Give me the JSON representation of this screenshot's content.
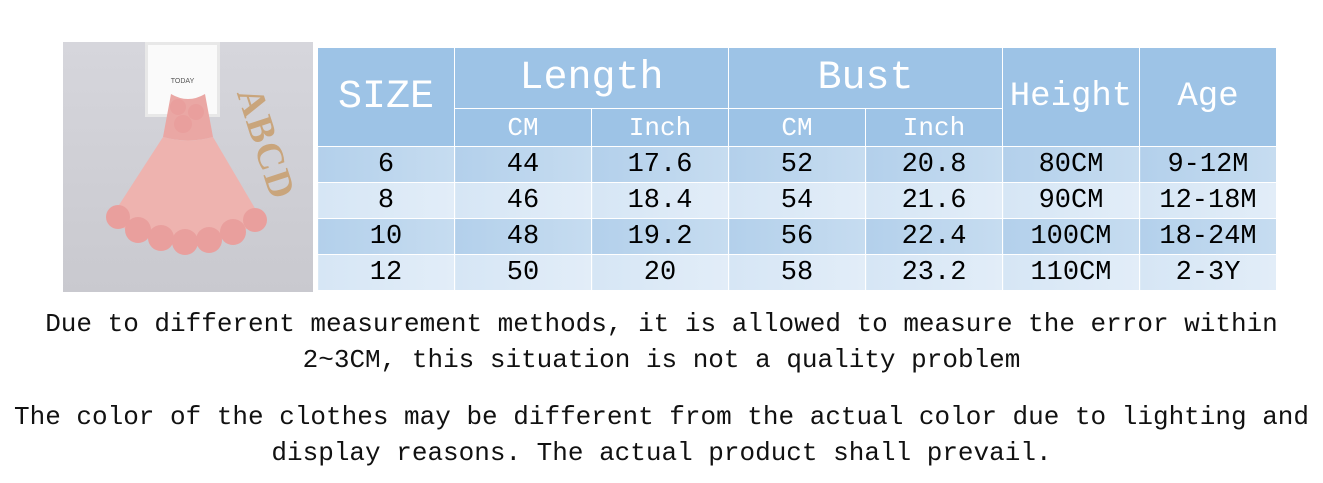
{
  "image": {
    "frame_text": "TODAY",
    "letters": "ABCD"
  },
  "table": {
    "headers": {
      "size": "SIZE",
      "length": "Length",
      "bust": "Bust",
      "height": "Height",
      "age": "Age",
      "cm": "CM",
      "inch": "Inch"
    },
    "rows": [
      {
        "size": "6",
        "length_cm": "44",
        "length_inch": "17.6",
        "bust_cm": "52",
        "bust_inch": "20.8",
        "height": "80CM",
        "age": "9-12M"
      },
      {
        "size": "8",
        "length_cm": "46",
        "length_inch": "18.4",
        "bust_cm": "54",
        "bust_inch": "21.6",
        "height": "90CM",
        "age": "12-18M"
      },
      {
        "size": "10",
        "length_cm": "48",
        "length_inch": "19.2",
        "bust_cm": "56",
        "bust_inch": "22.4",
        "height": "100CM",
        "age": "18-24M"
      },
      {
        "size": "12",
        "length_cm": "50",
        "length_inch": "20",
        "bust_cm": "58",
        "bust_inch": "23.2",
        "height": "110CM",
        "age": "2-3Y"
      }
    ]
  },
  "notes": {
    "measure_line1": "Due to different measurement methods, it is allowed to measure the error within",
    "measure_line2": "2~3CM, this situation is not a quality problem",
    "color_line1": "The color of the clothes may be different from the actual color due to lighting and",
    "color_line2": "display reasons. The actual product shall prevail."
  }
}
